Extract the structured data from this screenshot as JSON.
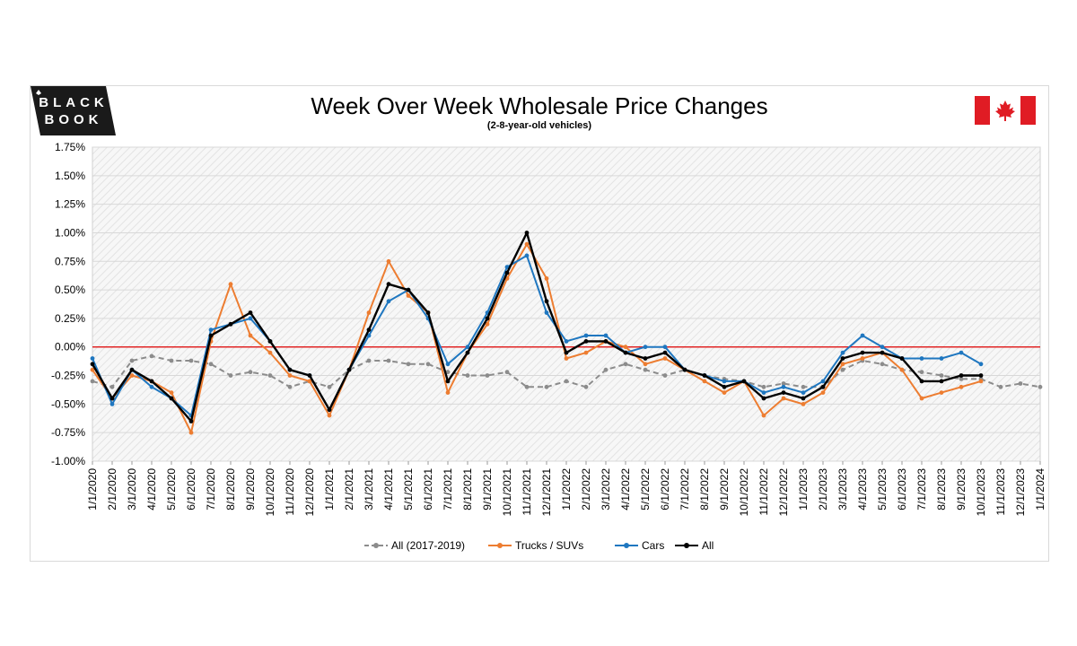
{
  "brand": {
    "line1": "BLACK",
    "line2": "BOOK",
    "flag_icon": "canada-flag-icon"
  },
  "colors": {
    "all_2017_2019": "#8c8c8c",
    "trucks": "#ed7d31",
    "cars": "#1f77c0",
    "all": "#000000",
    "zero_line": "#e00000"
  },
  "chart_data": {
    "type": "line",
    "title": "Week Over Week Wholesale Price Changes",
    "subtitle": "(2-8-year-old vehicles)",
    "xlabel": "",
    "ylabel": "",
    "ylim": [
      -1.0,
      1.75
    ],
    "y_ticks": [
      "1.75%",
      "1.50%",
      "1.25%",
      "1.00%",
      "0.75%",
      "0.50%",
      "0.25%",
      "0.00%",
      "-0.25%",
      "-0.50%",
      "-0.75%",
      "-1.00%"
    ],
    "x_ticks": [
      "1/1/2020",
      "2/1/2020",
      "3/1/2020",
      "4/1/2020",
      "5/1/2020",
      "6/1/2020",
      "7/1/2020",
      "8/1/2020",
      "9/1/2020",
      "10/1/2020",
      "11/1/2020",
      "12/1/2020",
      "1/1/2021",
      "2/1/2021",
      "3/1/2021",
      "4/1/2021",
      "5/1/2021",
      "6/1/2021",
      "7/1/2021",
      "8/1/2021",
      "9/1/2021",
      "10/1/2021",
      "11/1/2021",
      "12/1/2021",
      "1/1/2022",
      "2/1/2022",
      "3/1/2022",
      "4/1/2022",
      "5/1/2022",
      "6/1/2022",
      "7/1/2022",
      "8/1/2022",
      "9/1/2022",
      "10/1/2022",
      "11/1/2022",
      "12/1/2022",
      "1/1/2023",
      "2/1/2023",
      "3/1/2023",
      "4/1/2023",
      "5/1/2023",
      "6/1/2023",
      "7/1/2023",
      "8/1/2023",
      "9/1/2023",
      "10/1/2023",
      "11/1/2023",
      "12/1/2023",
      "1/1/2024"
    ],
    "x_unit": "months since 1/1/2020",
    "legend_position": "bottom",
    "grid": true,
    "series": [
      {
        "name": "All (2017-2019)",
        "color_key": "all_2017_2019",
        "style": "dashed",
        "points": [
          [
            0,
            -0.3
          ],
          [
            1,
            -0.35
          ],
          [
            2,
            -0.12
          ],
          [
            3,
            -0.08
          ],
          [
            4,
            -0.12
          ],
          [
            5,
            -0.12
          ],
          [
            6,
            -0.15
          ],
          [
            7,
            -0.25
          ],
          [
            8,
            -0.22
          ],
          [
            9,
            -0.25
          ],
          [
            10,
            -0.35
          ],
          [
            11,
            -0.3
          ],
          [
            12,
            -0.35
          ],
          [
            13,
            -0.2
          ],
          [
            14,
            -0.12
          ],
          [
            15,
            -0.12
          ],
          [
            16,
            -0.15
          ],
          [
            17,
            -0.15
          ],
          [
            18,
            -0.22
          ],
          [
            19,
            -0.25
          ],
          [
            20,
            -0.25
          ],
          [
            21,
            -0.22
          ],
          [
            22,
            -0.35
          ],
          [
            23,
            -0.35
          ],
          [
            24,
            -0.3
          ],
          [
            25,
            -0.35
          ],
          [
            26,
            -0.2
          ],
          [
            27,
            -0.15
          ],
          [
            28,
            -0.2
          ],
          [
            29,
            -0.25
          ],
          [
            30,
            -0.2
          ],
          [
            31,
            -0.25
          ],
          [
            32,
            -0.28
          ],
          [
            33,
            -0.3
          ],
          [
            34,
            -0.35
          ],
          [
            35,
            -0.32
          ],
          [
            36,
            -0.35
          ],
          [
            37,
            -0.35
          ],
          [
            38,
            -0.2
          ],
          [
            39,
            -0.12
          ],
          [
            40,
            -0.15
          ],
          [
            41,
            -0.2
          ],
          [
            42,
            -0.22
          ],
          [
            43,
            -0.25
          ],
          [
            44,
            -0.28
          ],
          [
            45,
            -0.28
          ],
          [
            46,
            -0.35
          ],
          [
            47,
            -0.32
          ],
          [
            48,
            -0.35
          ]
        ]
      },
      {
        "name": "Trucks / SUVs",
        "color_key": "trucks",
        "style": "solid",
        "points": [
          [
            0,
            -0.2
          ],
          [
            1,
            -0.45
          ],
          [
            2,
            -0.25
          ],
          [
            3,
            -0.3
          ],
          [
            4,
            -0.4
          ],
          [
            5,
            -0.75
          ],
          [
            6,
            0.05
          ],
          [
            7,
            0.55
          ],
          [
            8,
            0.1
          ],
          [
            9,
            -0.05
          ],
          [
            10,
            -0.25
          ],
          [
            11,
            -0.3
          ],
          [
            12,
            -0.6
          ],
          [
            13,
            -0.2
          ],
          [
            14,
            0.3
          ],
          [
            15,
            0.75
          ],
          [
            16,
            0.45
          ],
          [
            17,
            0.3
          ],
          [
            18,
            -0.4
          ],
          [
            19,
            -0.05
          ],
          [
            20,
            0.2
          ],
          [
            21,
            0.6
          ],
          [
            22,
            0.9
          ],
          [
            23,
            0.6
          ],
          [
            24,
            -0.1
          ],
          [
            25,
            -0.05
          ],
          [
            26,
            0.05
          ],
          [
            27,
            0.0
          ],
          [
            28,
            -0.15
          ],
          [
            29,
            -0.1
          ],
          [
            30,
            -0.2
          ],
          [
            31,
            -0.3
          ],
          [
            32,
            -0.4
          ],
          [
            33,
            -0.3
          ],
          [
            34,
            -0.6
          ],
          [
            35,
            -0.45
          ],
          [
            36,
            -0.5
          ],
          [
            37,
            -0.4
          ],
          [
            38,
            -0.15
          ],
          [
            39,
            -0.1
          ],
          [
            40,
            -0.05
          ],
          [
            41,
            -0.2
          ],
          [
            42,
            -0.45
          ],
          [
            43,
            -0.4
          ],
          [
            44,
            -0.35
          ],
          [
            45,
            -0.3
          ]
        ]
      },
      {
        "name": "Cars",
        "color_key": "cars",
        "style": "solid",
        "points": [
          [
            0,
            -0.1
          ],
          [
            1,
            -0.5
          ],
          [
            2,
            -0.2
          ],
          [
            3,
            -0.35
          ],
          [
            4,
            -0.45
          ],
          [
            5,
            -0.6
          ],
          [
            6,
            0.15
          ],
          [
            7,
            0.2
          ],
          [
            8,
            0.25
          ],
          [
            9,
            0.05
          ],
          [
            10,
            -0.2
          ],
          [
            11,
            -0.25
          ],
          [
            12,
            -0.55
          ],
          [
            13,
            -0.2
          ],
          [
            14,
            0.1
          ],
          [
            15,
            0.4
          ],
          [
            16,
            0.5
          ],
          [
            17,
            0.25
          ],
          [
            18,
            -0.15
          ],
          [
            19,
            0.0
          ],
          [
            20,
            0.3
          ],
          [
            21,
            0.7
          ],
          [
            22,
            0.8
          ],
          [
            23,
            0.3
          ],
          [
            24,
            0.05
          ],
          [
            25,
            0.1
          ],
          [
            26,
            0.1
          ],
          [
            27,
            -0.05
          ],
          [
            28,
            0.0
          ],
          [
            29,
            0.0
          ],
          [
            30,
            -0.2
          ],
          [
            31,
            -0.25
          ],
          [
            32,
            -0.3
          ],
          [
            33,
            -0.3
          ],
          [
            34,
            -0.4
          ],
          [
            35,
            -0.35
          ],
          [
            36,
            -0.4
          ],
          [
            37,
            -0.3
          ],
          [
            38,
            -0.05
          ],
          [
            39,
            0.1
          ],
          [
            40,
            0.0
          ],
          [
            41,
            -0.1
          ],
          [
            42,
            -0.1
          ],
          [
            43,
            -0.1
          ],
          [
            44,
            -0.05
          ],
          [
            45,
            -0.15
          ]
        ]
      },
      {
        "name": "All",
        "color_key": "all",
        "style": "solid",
        "points": [
          [
            0,
            -0.15
          ],
          [
            1,
            -0.45
          ],
          [
            2,
            -0.2
          ],
          [
            3,
            -0.3
          ],
          [
            4,
            -0.45
          ],
          [
            5,
            -0.65
          ],
          [
            6,
            0.1
          ],
          [
            7,
            0.2
          ],
          [
            8,
            0.3
          ],
          [
            9,
            0.05
          ],
          [
            10,
            -0.2
          ],
          [
            11,
            -0.25
          ],
          [
            12,
            -0.55
          ],
          [
            13,
            -0.2
          ],
          [
            14,
            0.15
          ],
          [
            15,
            0.55
          ],
          [
            16,
            0.5
          ],
          [
            17,
            0.3
          ],
          [
            18,
            -0.3
          ],
          [
            19,
            -0.05
          ],
          [
            20,
            0.25
          ],
          [
            21,
            0.65
          ],
          [
            22,
            1.0
          ],
          [
            23,
            0.4
          ],
          [
            24,
            -0.05
          ],
          [
            25,
            0.05
          ],
          [
            26,
            0.05
          ],
          [
            27,
            -0.05
          ],
          [
            28,
            -0.1
          ],
          [
            29,
            -0.05
          ],
          [
            30,
            -0.2
          ],
          [
            31,
            -0.25
          ],
          [
            32,
            -0.35
          ],
          [
            33,
            -0.3
          ],
          [
            34,
            -0.45
          ],
          [
            35,
            -0.4
          ],
          [
            36,
            -0.45
          ],
          [
            37,
            -0.35
          ],
          [
            38,
            -0.1
          ],
          [
            39,
            -0.05
          ],
          [
            40,
            -0.05
          ],
          [
            41,
            -0.1
          ],
          [
            42,
            -0.3
          ],
          [
            43,
            -0.3
          ],
          [
            44,
            -0.25
          ],
          [
            45,
            -0.25
          ]
        ]
      }
    ]
  }
}
